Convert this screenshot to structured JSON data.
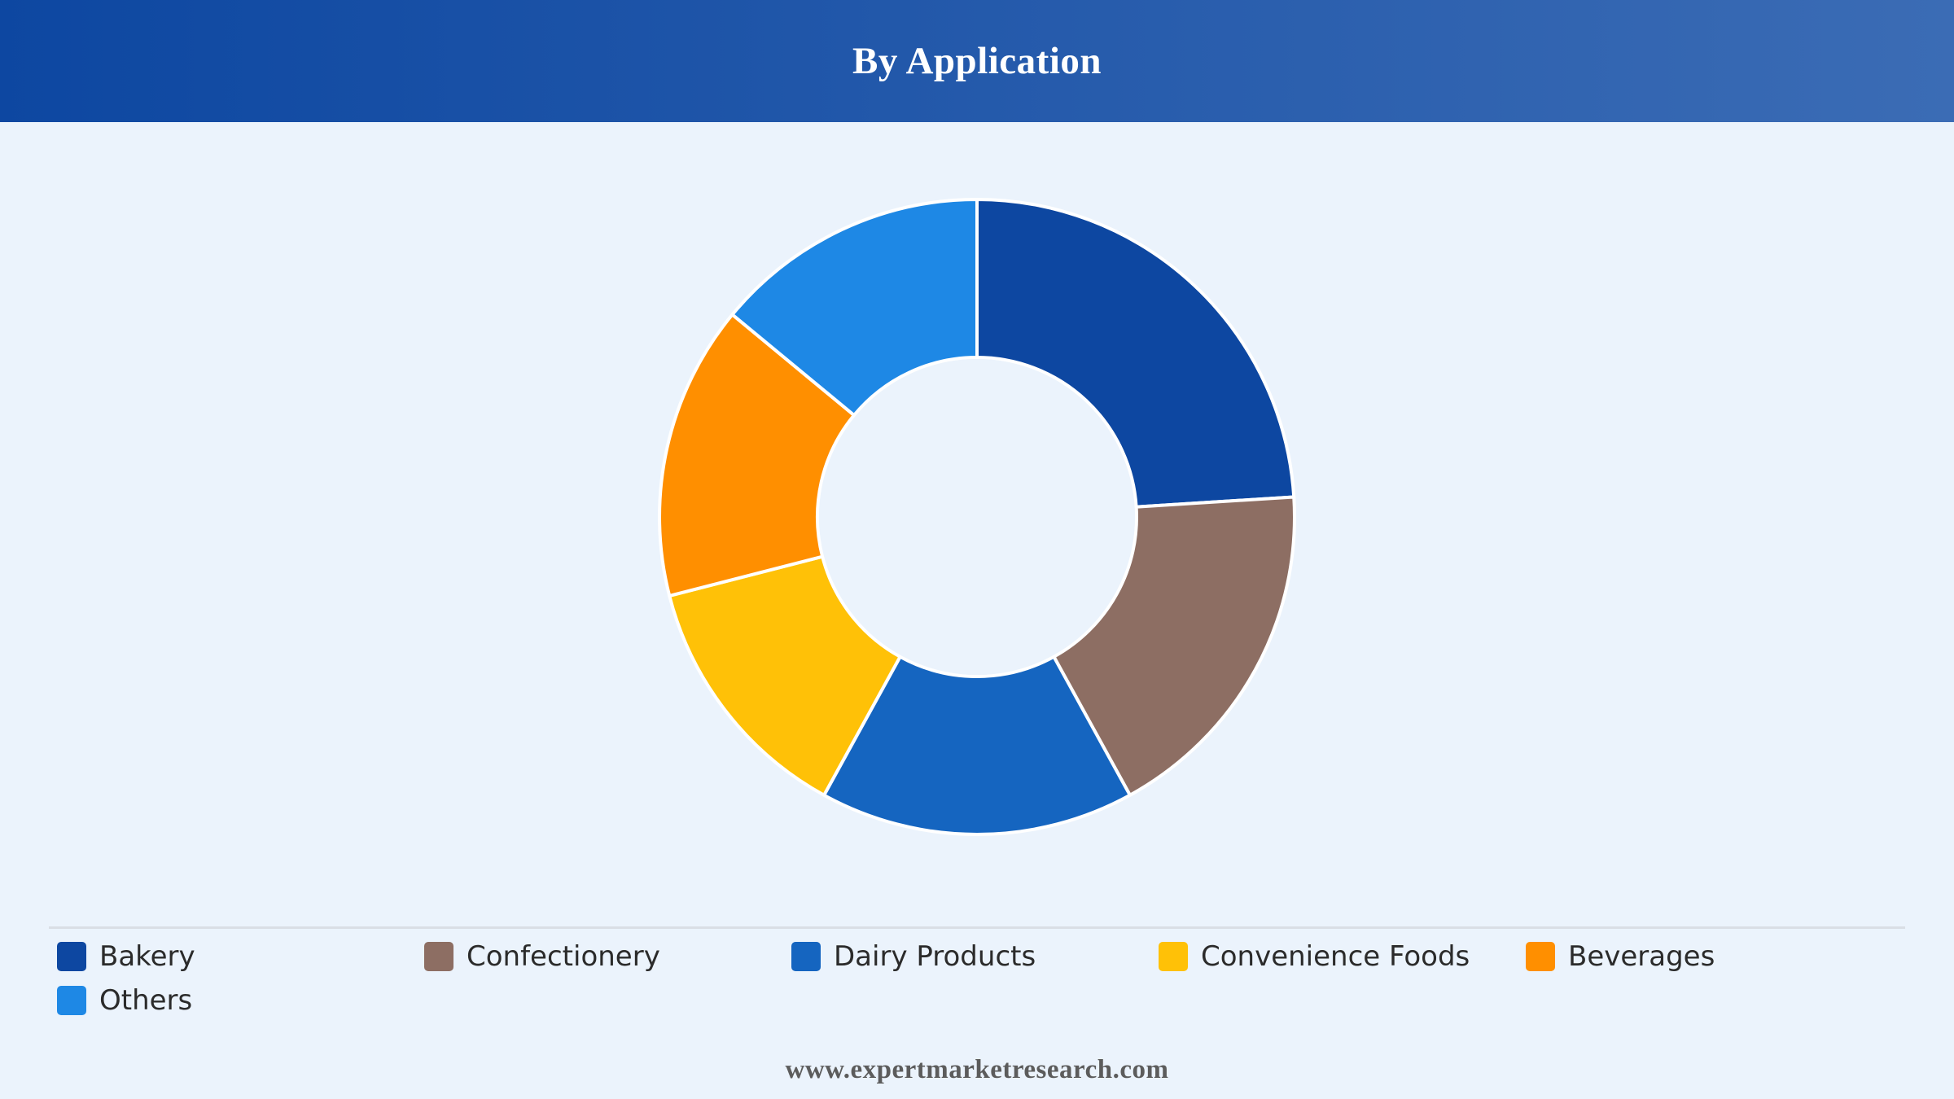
{
  "header": {
    "title": "By Application"
  },
  "chart_data": {
    "type": "pie",
    "title": "By Application",
    "donut": true,
    "categories": [
      "Bakery",
      "Confectionery",
      "Dairy Products",
      "Convenience Foods",
      "Beverages",
      "Others"
    ],
    "values": [
      24,
      18,
      16,
      13,
      15,
      14
    ],
    "colors": [
      "#0d47a1",
      "#8d6e63",
      "#1565c0",
      "#ffc107",
      "#ff8f00",
      "#1e88e5"
    ],
    "legend_position": "bottom"
  },
  "legend": {
    "items": [
      {
        "label": "Bakery",
        "color": "#0d47a1"
      },
      {
        "label": "Confectionery",
        "color": "#8d6e63"
      },
      {
        "label": "Dairy Products",
        "color": "#1565c0"
      },
      {
        "label": "Convenience Foods",
        "color": "#ffc107"
      },
      {
        "label": "Beverages",
        "color": "#ff8f00"
      },
      {
        "label": "Others",
        "color": "#1e88e5"
      }
    ]
  },
  "footer": {
    "source": "www.expertmarketresearch.com"
  }
}
